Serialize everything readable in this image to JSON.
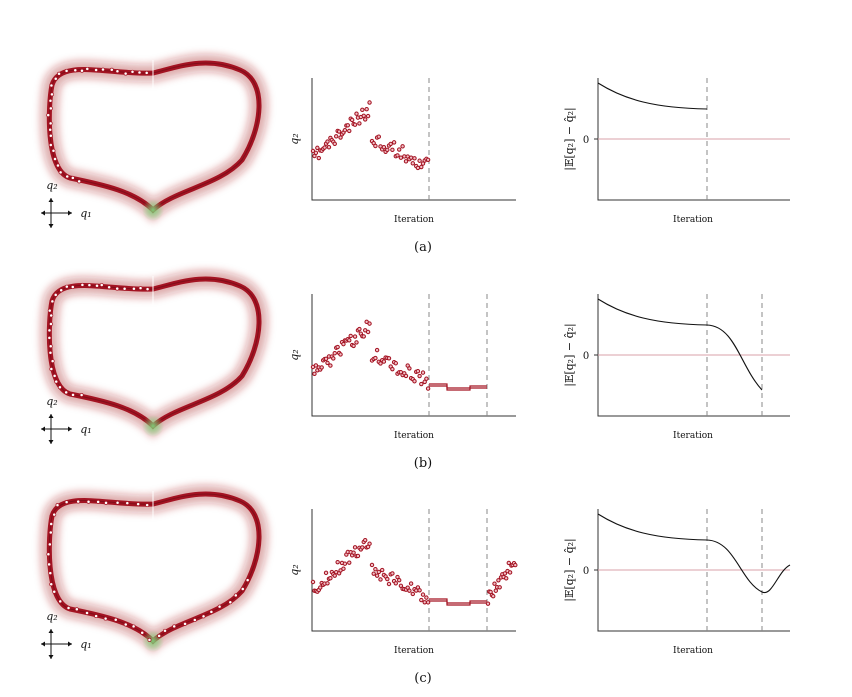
{
  "figure": {
    "panels": [
      {
        "caption": "(a)",
        "left_axis_label": "q₂",
        "right_axis_label": "|𝔼[q₂] − q̂₂|",
        "x_label": "Iteration",
        "zero_tick": "0"
      },
      {
        "caption": "(b)",
        "left_axis_label": "q₂",
        "right_axis_label": "|𝔼[q₂] − q̂₂|",
        "x_label": "Iteration",
        "zero_tick": "0"
      },
      {
        "caption": "(c)",
        "left_axis_label": "q₂",
        "right_axis_label": "|𝔼[q₂] − q̂₂|",
        "x_label": "Iteration",
        "zero_tick": "0"
      }
    ],
    "coord_labels": {
      "q1": "q₁",
      "q2": "q₂"
    },
    "colors": {
      "trajectory": "#a31322",
      "marker": "#f3c1c8",
      "goal": "#7fd37a",
      "zero_line": "#d9a1a8"
    }
  }
}
